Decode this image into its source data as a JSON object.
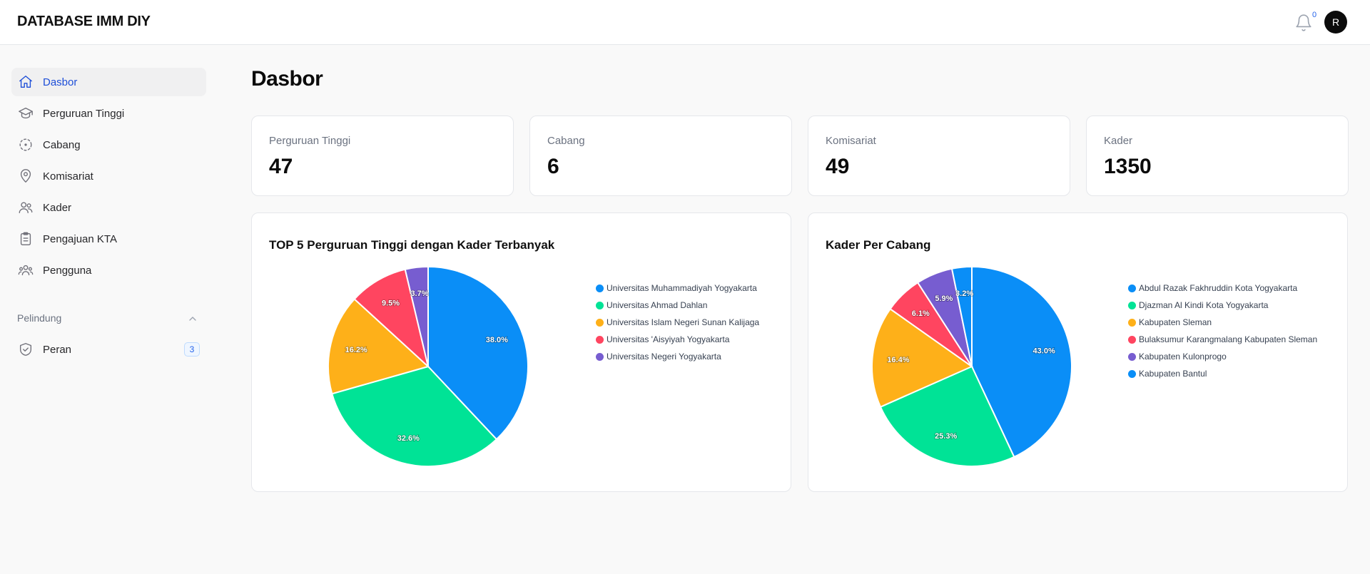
{
  "app": {
    "title": "DATABASE IMM DIY"
  },
  "header": {
    "notification_count": "0",
    "avatar_initial": "R",
    "icons": [
      "bell-icon"
    ]
  },
  "sidebar": {
    "items": [
      {
        "label": "Dasbor",
        "icon": "home-icon",
        "active": true
      },
      {
        "label": "Perguruan Tinggi",
        "icon": "graduation-cap-icon"
      },
      {
        "label": "Cabang",
        "icon": "focus-icon"
      },
      {
        "label": "Komisariat",
        "icon": "map-pin-icon"
      },
      {
        "label": "Kader",
        "icon": "users-icon"
      },
      {
        "label": "Pengajuan KTA",
        "icon": "clipboard-icon"
      },
      {
        "label": "Pengguna",
        "icon": "user-group-icon"
      }
    ],
    "group": {
      "label": "Pelindung",
      "items": [
        {
          "label": "Peran",
          "icon": "shield-check-icon",
          "badge": "3"
        }
      ]
    }
  },
  "main": {
    "title": "Dasbor",
    "stats": [
      {
        "label": "Perguruan Tinggi",
        "value": "47"
      },
      {
        "label": "Cabang",
        "value": "6"
      },
      {
        "label": "Komisariat",
        "value": "49"
      },
      {
        "label": "Kader",
        "value": "1350"
      }
    ]
  },
  "colors": {
    "blue": "#0a8ef7",
    "green": "#00e396",
    "amber": "#feb019",
    "red": "#ff4560",
    "purple": "#775dd0",
    "accent": "#1d4ed8"
  },
  "chart_data": [
    {
      "type": "pie",
      "title": "TOP 5 Perguruan Tinggi dengan Kader Terbanyak",
      "legend": "right",
      "categories": [
        "Universitas Muhammadiyah Yogyakarta",
        "Universitas Ahmad Dahlan",
        "Universitas Islam Negeri Sunan Kalijaga",
        "Universitas 'Aisyiyah Yogyakarta",
        "Universitas Negeri Yogyakarta"
      ],
      "values": [
        38.0,
        32.6,
        16.2,
        9.5,
        3.7
      ],
      "labels": [
        "38.0%",
        "32.6%",
        "16.2%",
        "9.5%",
        "3.7%"
      ],
      "colors": [
        "#0a8ef7",
        "#00e396",
        "#feb019",
        "#ff4560",
        "#775dd0"
      ]
    },
    {
      "type": "pie",
      "title": "Kader Per Cabang",
      "legend": "right",
      "categories": [
        "Abdul Razak Fakhruddin Kota Yogyakarta",
        "Djazman Al Kindi Kota Yogyakarta",
        "Kabupaten Sleman",
        "Bulaksumur Karangmalang Kabupaten Sleman",
        "Kabupaten Kulonprogo",
        "Kabupaten Bantul"
      ],
      "values": [
        43.0,
        25.3,
        16.4,
        6.1,
        5.9,
        3.2
      ],
      "labels": [
        "43.0%",
        "25.3%",
        "16.4%",
        "6.1%",
        "5.9%",
        "3.2%"
      ],
      "colors": [
        "#0a8ef7",
        "#00e396",
        "#feb019",
        "#ff4560",
        "#775dd0",
        "#0a8ef7"
      ]
    }
  ]
}
